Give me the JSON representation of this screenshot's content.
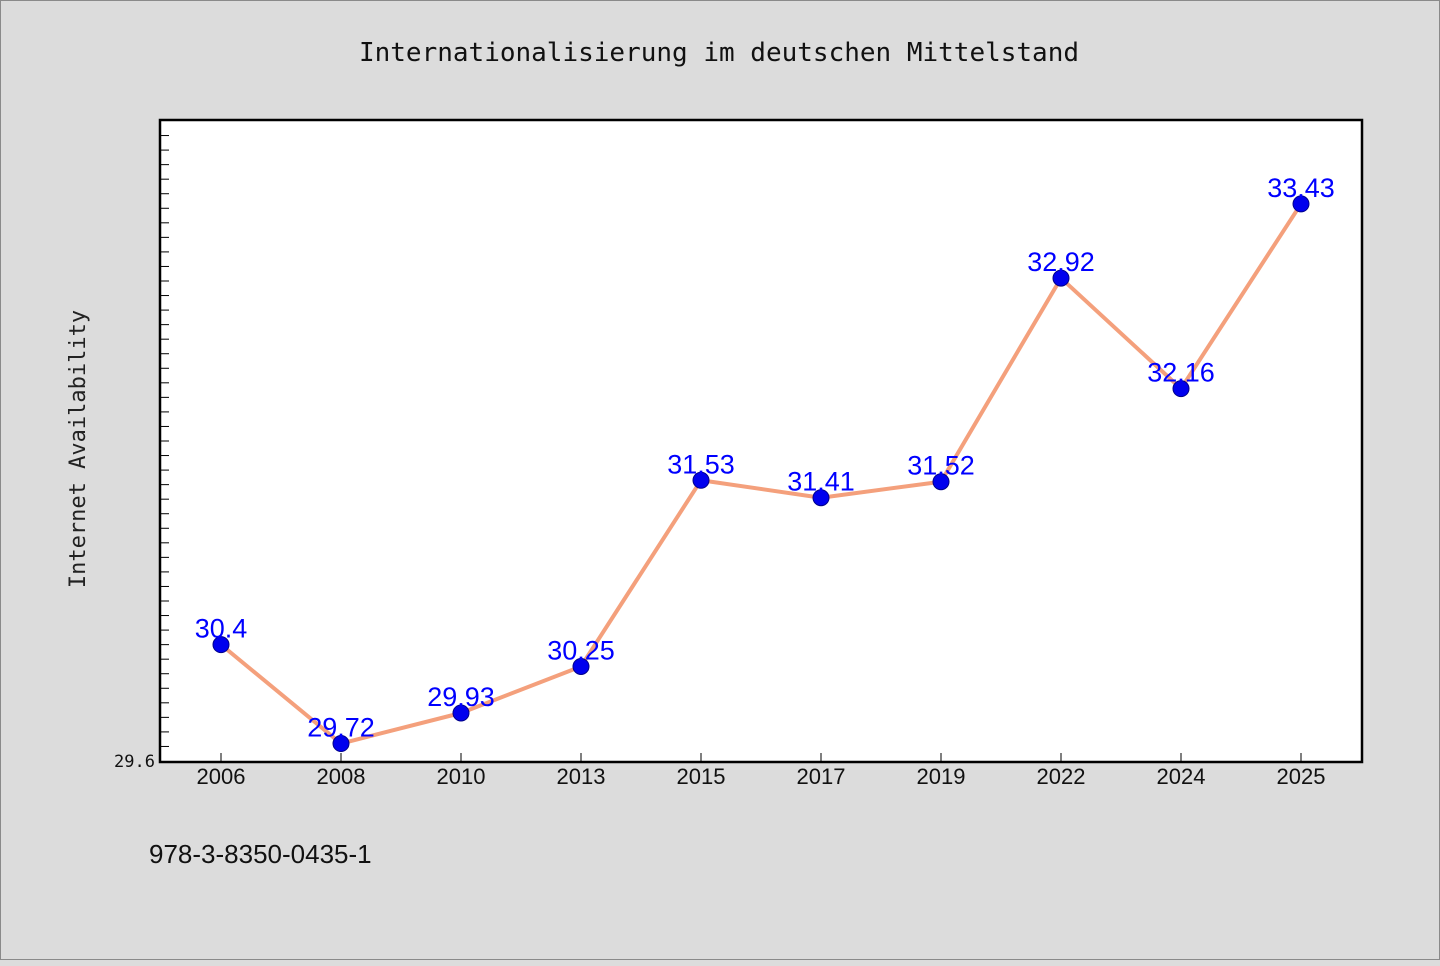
{
  "chart_data": {
    "type": "line",
    "title": "Internationalisierung im deutschen Mittelstand",
    "xlabel": "",
    "ylabel": "Internet Availability",
    "categories": [
      "2006",
      "2008",
      "2010",
      "2013",
      "2015",
      "2017",
      "2019",
      "2022",
      "2024",
      "2025"
    ],
    "series": [
      {
        "values": [
          30.4,
          29.72,
          29.93,
          30.25,
          31.53,
          31.41,
          31.52,
          32.92,
          32.16,
          33.43
        ],
        "labels": [
          "30.4",
          "29.72",
          "29.93",
          "30.25",
          "31.53",
          "31.41",
          "31.52",
          "32.92",
          "32.16",
          "33.43"
        ]
      }
    ],
    "ylim": [
      29.6,
      34.0
    ],
    "y_tick_labels": [
      "29.6"
    ],
    "grid": false,
    "legend": "none",
    "colors": {
      "line": "#f4a07c",
      "marker": "#0000ee",
      "data_label": "#0000ff",
      "background": "#dcdcdc",
      "plot_area": "#ffffff"
    }
  },
  "footer": {
    "code": "978-3-8350-0435-1"
  }
}
